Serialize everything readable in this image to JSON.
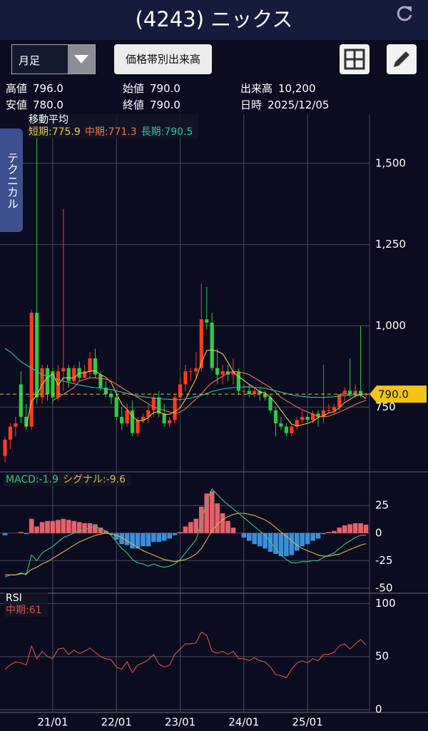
{
  "header": {
    "title": "(4243) ニックス"
  },
  "toolbar": {
    "period": "月足",
    "volume_button": "価格帯別出来高"
  },
  "info": [
    [
      {
        "label": "高値",
        "value": "796.0"
      },
      {
        "label": "始値",
        "value": "790.0"
      },
      {
        "label": "出来高",
        "value": "10,200"
      }
    ],
    [
      {
        "label": "安値",
        "value": "780.0"
      },
      {
        "label": "終値",
        "value": "790.0"
      },
      {
        "label": "日時",
        "value": "2025/12/05"
      }
    ]
  ],
  "side_tab": "テクニカル",
  "chart_data": [
    {
      "type": "candlestick",
      "legend_title": "移動平均",
      "up_color": "#ff3b1f",
      "down_color": "#2ecc40",
      "categories": [
        null,
        null,
        null,
        null,
        null,
        null,
        null,
        null,
        null,
        "21/01",
        null,
        null,
        null,
        null,
        null,
        null,
        null,
        null,
        null,
        null,
        null,
        "22/01",
        null,
        null,
        null,
        null,
        null,
        null,
        null,
        null,
        null,
        null,
        null,
        "23/01",
        null,
        null,
        null,
        null,
        null,
        null,
        null,
        null,
        null,
        null,
        null,
        "24/01",
        null,
        null,
        null,
        null,
        null,
        null,
        null,
        null,
        null,
        null,
        null,
        "25/01",
        null,
        null,
        null,
        null,
        null,
        null,
        null,
        null,
        null,
        null,
        null
      ],
      "open": [
        600,
        650,
        690,
        820,
        720,
        690,
        1040,
        780,
        870,
        860,
        780,
        860,
        870,
        830,
        870,
        840,
        860,
        900,
        850,
        810,
        790,
        780,
        720,
        700,
        740,
        670,
        710,
        720,
        740,
        780,
        730,
        700,
        710,
        780,
        820,
        860,
        860,
        870,
        1020,
        1010,
        870,
        850,
        860,
        850,
        860,
        800,
        800,
        790,
        800,
        790,
        780,
        740,
        700,
        690,
        670,
        690,
        710,
        720,
        710,
        730,
        720,
        740,
        740,
        750,
        790,
        800,
        790,
        800,
        790
      ],
      "high": [
        660,
        700,
        720,
        860,
        760,
        1050,
        1650,
        880,
        880,
        870,
        880,
        1360,
        880,
        880,
        890,
        880,
        920,
        930,
        860,
        830,
        800,
        790,
        750,
        760,
        770,
        720,
        730,
        760,
        790,
        800,
        760,
        720,
        790,
        840,
        880,
        870,
        920,
        1130,
        1120,
        1040,
        930,
        880,
        880,
        900,
        870,
        820,
        820,
        810,
        810,
        800,
        790,
        750,
        720,
        700,
        700,
        720,
        740,
        730,
        740,
        740,
        880,
        760,
        760,
        790,
        810,
        900,
        820,
        1000,
        796
      ],
      "low": [
        580,
        620,
        660,
        700,
        680,
        680,
        760,
        760,
        770,
        760,
        770,
        800,
        810,
        820,
        830,
        840,
        840,
        840,
        800,
        780,
        760,
        710,
        680,
        690,
        660,
        660,
        700,
        700,
        720,
        720,
        690,
        690,
        700,
        770,
        800,
        830,
        840,
        860,
        990,
        860,
        820,
        820,
        830,
        820,
        790,
        790,
        780,
        780,
        770,
        770,
        730,
        660,
        680,
        660,
        660,
        680,
        700,
        700,
        700,
        690,
        700,
        730,
        730,
        740,
        770,
        780,
        780,
        780,
        780
      ],
      "close": [
        650,
        690,
        700,
        720,
        690,
        1040,
        780,
        870,
        790,
        780,
        860,
        870,
        830,
        870,
        840,
        860,
        900,
        850,
        810,
        790,
        780,
        720,
        700,
        740,
        670,
        710,
        720,
        740,
        780,
        730,
        700,
        710,
        780,
        820,
        860,
        860,
        870,
        1020,
        1010,
        870,
        850,
        860,
        850,
        860,
        800,
        800,
        790,
        800,
        790,
        780,
        740,
        700,
        690,
        670,
        690,
        710,
        720,
        710,
        730,
        720,
        740,
        740,
        750,
        790,
        800,
        790,
        800,
        790,
        790
      ],
      "series": [
        {
          "name": "短期",
          "last_label": "775.9",
          "color": "#e6c84a",
          "values": [
            null,
            null,
            null,
            null,
            690,
            768,
            786,
            820,
            842,
            852,
            818,
            840,
            840,
            840,
            854,
            856,
            860,
            862,
            850,
            842,
            826,
            790,
            760,
            742,
            722,
            708,
            708,
            718,
            734,
            736,
            728,
            728,
            736,
            748,
            774,
            806,
            838,
            886,
            924,
            926,
            922,
            914,
            888,
            858,
            844,
            832,
            820,
            810,
            796,
            794,
            780,
            762,
            740,
            718,
            698,
            692,
            696,
            700,
            706,
            718,
            724,
            732,
            736,
            748,
            764,
            774,
            784,
            788,
            775.9
          ]
        },
        {
          "name": "中期",
          "last_label": "771.3",
          "color": "#ec7750",
          "values": [
            null,
            null,
            null,
            null,
            null,
            null,
            null,
            null,
            null,
            770,
            780,
            790,
            800,
            810,
            830,
            835,
            840,
            840,
            838,
            836,
            830,
            820,
            810,
            800,
            790,
            780,
            770,
            760,
            750,
            745,
            740,
            735,
            730,
            735,
            745,
            760,
            775,
            790,
            810,
            825,
            835,
            845,
            855,
            860,
            858,
            855,
            850,
            840,
            830,
            820,
            810,
            795,
            780,
            770,
            760,
            750,
            742,
            735,
            728,
            722,
            720,
            722,
            728,
            735,
            742,
            750,
            758,
            765,
            771.3
          ]
        },
        {
          "name": "長期",
          "last_label": "790.5",
          "color": "#2ec4a0",
          "values": [
            930,
            920,
            905,
            890,
            880,
            870,
            860,
            850,
            845,
            840,
            835,
            830,
            826,
            822,
            818,
            815,
            812,
            810,
            808,
            806,
            804,
            800,
            796,
            792,
            788,
            784,
            782,
            780,
            778,
            776,
            775,
            774,
            773,
            773,
            775,
            778,
            782,
            786,
            792,
            798,
            802,
            806,
            808,
            810,
            811,
            812,
            812,
            811,
            810,
            808,
            804,
            800,
            796,
            792,
            788,
            785,
            783,
            781,
            780,
            780,
            780,
            781,
            782,
            784,
            786,
            787,
            788,
            789,
            790.5
          ]
        }
      ],
      "ylim": [
        553,
        1651
      ],
      "yticks": [
        750,
        {
          "value": 1000,
          "label": "1,000"
        },
        {
          "value": 1250,
          "label": "1,250"
        },
        {
          "value": 1500,
          "label": "1,500"
        }
      ],
      "price_tag": {
        "value": 790,
        "label": "790.0"
      }
    },
    {
      "type": "bar",
      "pos_color": "#e8606a",
      "neg_color": "#3b8fd9",
      "histogram": [
        -2,
        0,
        0,
        1,
        -1,
        13,
        6,
        10,
        11,
        11,
        12,
        13,
        12,
        11,
        10,
        9,
        9,
        8,
        5,
        2,
        -1,
        -6,
        -10,
        -11,
        -14,
        -14,
        -12,
        -12,
        -8,
        -8,
        -7,
        -5,
        -2,
        1,
        6,
        10,
        13,
        24,
        36,
        38,
        27,
        18,
        11,
        5,
        0,
        -4,
        -7,
        -10,
        -12,
        -14,
        -17,
        -19,
        -21,
        -21,
        -20,
        -16,
        -12,
        -10,
        -7,
        -5,
        -1,
        1,
        2,
        5,
        7,
        8,
        9,
        9,
        7.7
      ],
      "series": [
        {
          "name": "MACD",
          "last_label": "-1.9",
          "color": "#3cc47a",
          "values": [
            -40,
            -38,
            -38,
            -36,
            -38,
            -20,
            -25,
            -18,
            -15,
            -12,
            -8,
            -4,
            -2,
            0,
            2,
            3,
            5,
            6,
            4,
            2,
            -2,
            -8,
            -14,
            -18,
            -24,
            -27,
            -28,
            -30,
            -28,
            -30,
            -31,
            -30,
            -28,
            -24,
            -18,
            -12,
            -6,
            10,
            30,
            40,
            35,
            30,
            26,
            22,
            18,
            14,
            10,
            6,
            2,
            -2,
            -8,
            -14,
            -20,
            -24,
            -27,
            -27,
            -26,
            -26,
            -25,
            -25,
            -22,
            -20,
            -18,
            -14,
            -10,
            -7,
            -4,
            -2,
            -1.9
          ]
        },
        {
          "name": "シグナル",
          "last_label": "-9.6",
          "color": "#d9b84a",
          "values": [
            -38,
            -38,
            -38,
            -37,
            -37,
            -33,
            -31,
            -28,
            -26,
            -23,
            -20,
            -17,
            -14,
            -11,
            -8,
            -6,
            -4,
            -2,
            -1,
            0,
            -1,
            -2,
            -4,
            -7,
            -10,
            -13,
            -16,
            -18,
            -20,
            -22,
            -24,
            -25,
            -26,
            -25,
            -24,
            -22,
            -19,
            -14,
            -6,
            2,
            8,
            12,
            15,
            17,
            18,
            18,
            17,
            16,
            14,
            12,
            9,
            5,
            1,
            -3,
            -7,
            -11,
            -14,
            -16,
            -18,
            -20,
            -21,
            -21,
            -20,
            -19,
            -17,
            -15,
            -13,
            -11,
            -9.6
          ]
        }
      ],
      "ylim": [
        -54,
        55
      ],
      "yticks": [
        25,
        0,
        -25,
        -50
      ]
    },
    {
      "type": "line",
      "legend_title": "RSI",
      "series": [
        {
          "name": "中期",
          "last_label": "61",
          "color": "#e0503a",
          "values": [
            38,
            42,
            45,
            44,
            42,
            60,
            48,
            55,
            50,
            48,
            57,
            58,
            52,
            56,
            53,
            55,
            58,
            54,
            50,
            48,
            47,
            40,
            38,
            45,
            35,
            42,
            44,
            47,
            52,
            43,
            40,
            42,
            52,
            57,
            62,
            62,
            63,
            73,
            70,
            55,
            53,
            55,
            52,
            55,
            48,
            48,
            46,
            49,
            46,
            45,
            40,
            33,
            32,
            30,
            38,
            44,
            46,
            44,
            48,
            46,
            52,
            52,
            54,
            60,
            62,
            57,
            62,
            66,
            61
          ]
        }
      ],
      "ylim": [
        -2,
        109
      ],
      "yticks": [
        0,
        50,
        100
      ]
    }
  ]
}
